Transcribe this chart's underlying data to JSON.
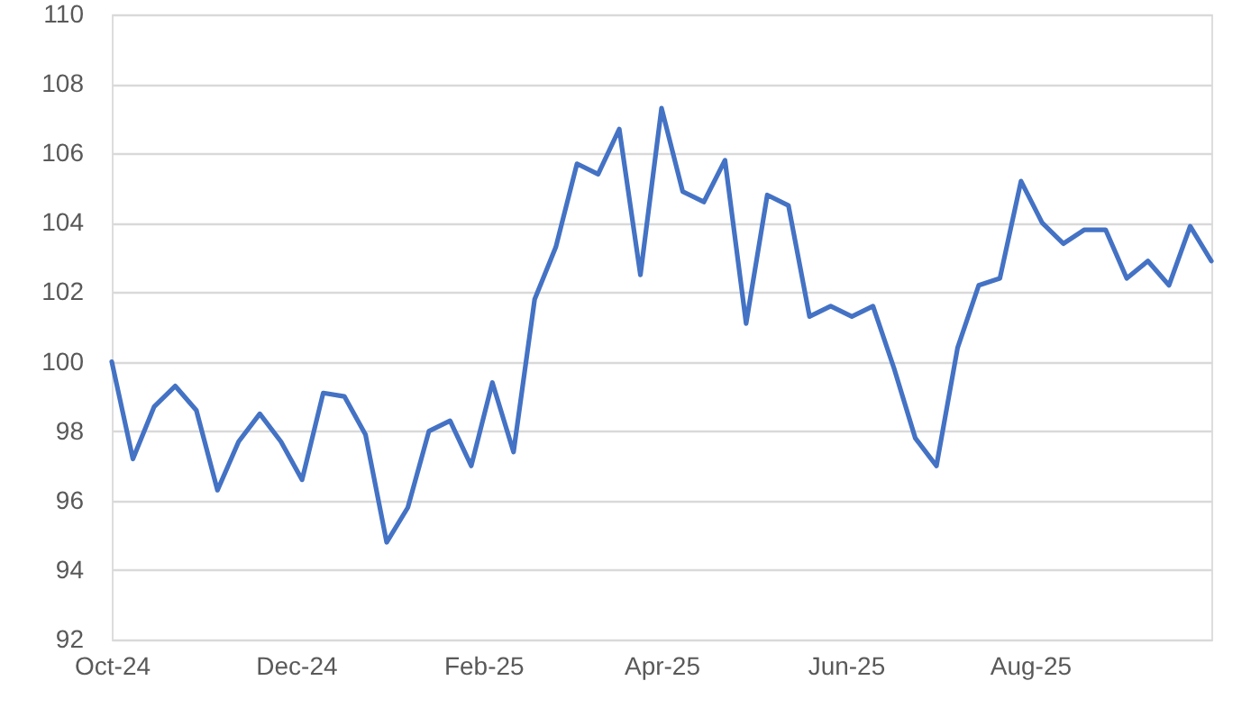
{
  "chart_data": {
    "type": "line",
    "x": [
      "2024-10-01",
      "2024-10-08",
      "2024-10-15",
      "2024-10-22",
      "2024-10-29",
      "2024-11-05",
      "2024-11-12",
      "2024-11-19",
      "2024-11-26",
      "2024-12-03",
      "2024-12-10",
      "2024-12-17",
      "2024-12-24",
      "2024-12-31",
      "2025-01-07",
      "2025-01-14",
      "2025-01-21",
      "2025-01-28",
      "2025-02-04",
      "2025-02-11",
      "2025-02-18",
      "2025-02-25",
      "2025-03-04",
      "2025-03-11",
      "2025-03-18",
      "2025-03-25",
      "2025-04-01",
      "2025-04-08",
      "2025-04-15",
      "2025-04-22",
      "2025-04-29",
      "2025-05-06",
      "2025-05-13",
      "2025-05-20",
      "2025-05-27",
      "2025-06-03",
      "2025-06-10",
      "2025-06-17",
      "2025-06-24",
      "2025-07-01",
      "2025-07-08",
      "2025-07-15",
      "2025-07-22",
      "2025-07-29",
      "2025-08-05",
      "2025-08-12",
      "2025-08-19",
      "2025-08-26",
      "2025-09-02",
      "2025-09-09",
      "2025-09-16",
      "2025-09-23",
      "2025-09-30"
    ],
    "series": [
      {
        "color": "#4472c4",
        "values": [
          100.0,
          97.2,
          98.7,
          99.3,
          98.6,
          96.3,
          97.7,
          98.5,
          97.7,
          96.6,
          99.1,
          99.0,
          97.9,
          94.8,
          95.8,
          98.0,
          98.3,
          97.0,
          99.4,
          97.4,
          101.8,
          103.3,
          105.7,
          105.4,
          106.7,
          102.5,
          107.3,
          104.9,
          104.6,
          105.8,
          101.1,
          104.8,
          104.5,
          101.3,
          101.6,
          101.3,
          101.6,
          99.8,
          97.8,
          97.0,
          100.4,
          102.2,
          102.4,
          105.2,
          104.0,
          103.4,
          103.8,
          103.8,
          102.4,
          102.9,
          102.2,
          103.9,
          102.9
        ]
      }
    ],
    "xlim": [
      "2024-10-01",
      "2025-09-30"
    ],
    "xticks": [
      {
        "value": "2024-10-01",
        "label": "Oct-24"
      },
      {
        "value": "2024-12-01",
        "label": "Dec-24"
      },
      {
        "value": "2025-02-01",
        "label": "Feb-25"
      },
      {
        "value": "2025-04-01",
        "label": "Apr-25"
      },
      {
        "value": "2025-06-01",
        "label": "Jun-25"
      },
      {
        "value": "2025-08-01",
        "label": "Aug-25"
      }
    ],
    "ylim": [
      92,
      110
    ],
    "yticks": [
      92,
      94,
      96,
      98,
      100,
      102,
      104,
      106,
      108,
      110
    ],
    "grid": "y",
    "marker": "none",
    "line_style": "solid"
  }
}
